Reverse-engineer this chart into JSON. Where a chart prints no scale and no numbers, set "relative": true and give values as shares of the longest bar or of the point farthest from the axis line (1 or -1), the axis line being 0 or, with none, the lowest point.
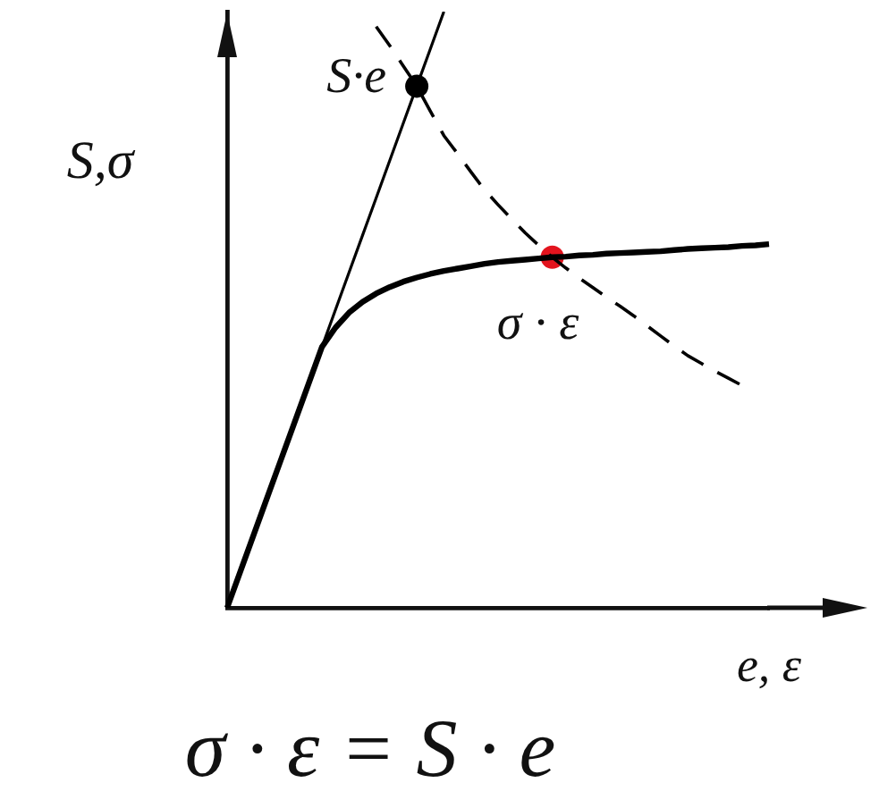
{
  "chart_data": {
    "type": "line",
    "relative": true,
    "xlabel": "e, ε",
    "ylabel": "S,σ",
    "grid": false,
    "legend": false,
    "categories": [
      null,
      null,
      null,
      null,
      null,
      null,
      null,
      null,
      null,
      null,
      null,
      null,
      null,
      null,
      null,
      null,
      null,
      null,
      null,
      null,
      null,
      null,
      null,
      null,
      null,
      null,
      null,
      null,
      null,
      null,
      null,
      null,
      null,
      null,
      null,
      null,
      null,
      null,
      null,
      null,
      null
    ],
    "series": [
      {
        "color": "#000000",
        "values": [
          0,
          0.0625,
          0.125,
          0.1875,
          0.25,
          0.3125,
          0.375,
          0.4375,
          0.5,
          0.5625,
          0.625,
          0.6875,
          0.75,
          0.8125,
          0.875,
          0.9375,
          1,
          null,
          null,
          null,
          null,
          null,
          null,
          null,
          null,
          null,
          null,
          null,
          null,
          null,
          null,
          null,
          null,
          null,
          null,
          null,
          null,
          null,
          null,
          null,
          null
        ]
      },
      {
        "color": "#000000",
        "values": [
          0,
          0.0625,
          0.125,
          0.1875,
          0.25,
          0.3125,
          0.375,
          0.4375,
          0.47,
          0.495,
          0.513,
          0.527,
          0.538,
          0.547,
          0.554,
          0.56,
          0.565,
          0.569,
          0.573,
          0.577,
          0.58,
          0.582,
          0.584,
          0.586,
          0.588,
          0.589,
          0.591,
          0.592,
          0.594,
          0.595,
          0.596,
          0.597,
          0.598,
          0.6,
          0.602,
          0.603,
          0.604,
          0.605,
          0.607,
          0.608,
          0.61
        ]
      },
      {
        "color": "#000000",
        "line_style": "dashed",
        "values": [
          null,
          null,
          null,
          null,
          null,
          null,
          null,
          null,
          null,
          null,
          null,
          0.975,
          0.943,
          0.909,
          0.875,
          0.833,
          0.792,
          0.762,
          0.731,
          0.701,
          0.676,
          0.652,
          0.629,
          0.608,
          0.588,
          0.57,
          0.553,
          0.537,
          0.521,
          0.506,
          0.49,
          0.473,
          0.456,
          0.439,
          0.423,
          0.41,
          0.397,
          0.385,
          0.373,
          null,
          null
        ]
      },
      {
        "color": "#000000",
        "marker": "circle",
        "values": [
          null,
          null,
          null,
          null,
          null,
          null,
          null,
          null,
          null,
          null,
          null,
          null,
          null,
          null,
          0.875,
          null,
          null,
          null,
          null,
          null,
          null,
          null,
          null,
          null,
          null,
          null,
          null,
          null,
          null,
          null,
          null,
          null,
          null,
          null,
          null,
          null,
          null,
          null,
          null,
          null,
          null
        ]
      },
      {
        "color": "#e3141e",
        "marker": "circle",
        "values": [
          null,
          null,
          null,
          null,
          null,
          null,
          null,
          null,
          null,
          null,
          null,
          null,
          null,
          null,
          null,
          null,
          null,
          null,
          null,
          null,
          null,
          null,
          null,
          null,
          0.588,
          null,
          null,
          null,
          null,
          null,
          null,
          null,
          null,
          null,
          null,
          null,
          null,
          null,
          null,
          null,
          null
        ]
      }
    ],
    "annotations": [
      "S·e",
      "σ · ε",
      "σ · ε = S · e"
    ]
  }
}
